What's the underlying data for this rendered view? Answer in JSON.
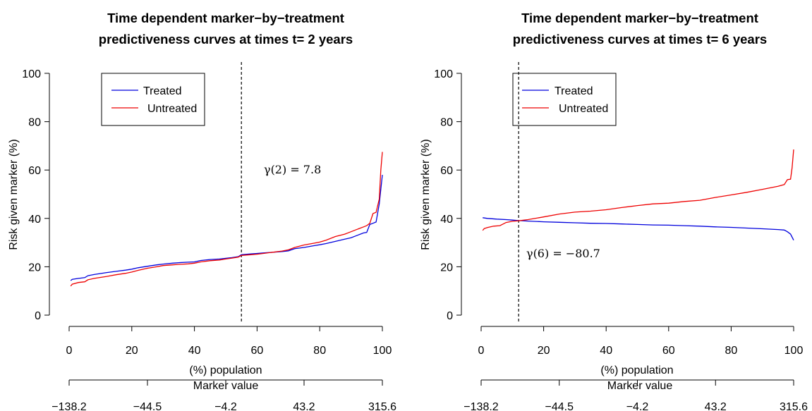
{
  "chart_data": [
    {
      "type": "line",
      "title_line1": "Time dependent marker−by−treatment",
      "title_line2": "predictiveness curves at times t= 2 years",
      "xlabel": "(%) population",
      "ylabel": "Risk given marker (%)",
      "xlim": [
        0,
        100
      ],
      "ylim": [
        0,
        100
      ],
      "x_ticks": [
        "0",
        "20",
        "40",
        "60",
        "80",
        "100"
      ],
      "y_ticks": [
        "0",
        "20",
        "40",
        "60",
        "80",
        "100"
      ],
      "marker_axis_label": "Marker value",
      "marker_ticks": [
        "−138.2",
        "−44.5",
        "−4.2",
        "43.2",
        "315.6"
      ],
      "legend_placement": "top-left",
      "vline_x": 55,
      "annotation": "γ(2) = 7.8",
      "series": [
        {
          "name": "Treated",
          "color": "#0000dd",
          "x": [
            0.5,
            1,
            3,
            5,
            6,
            8,
            10,
            12,
            15,
            18,
            20,
            22,
            25,
            28,
            30,
            33,
            35,
            38,
            40,
            42,
            45,
            48,
            50,
            52,
            54,
            55,
            58,
            60,
            62,
            65,
            68,
            70,
            72,
            75,
            78,
            80,
            82,
            85,
            88,
            90,
            92,
            94,
            95,
            96,
            97,
            98,
            99,
            99.5,
            100
          ],
          "y": [
            14.3,
            14.8,
            15.2,
            15.5,
            16.3,
            16.8,
            17.2,
            17.6,
            18.1,
            18.6,
            19.0,
            19.6,
            20.2,
            20.8,
            21.1,
            21.5,
            21.7,
            21.9,
            22.0,
            22.6,
            23.0,
            23.2,
            23.5,
            23.8,
            24.2,
            25.0,
            25.3,
            25.5,
            25.7,
            26.0,
            26.3,
            26.6,
            27.5,
            28.0,
            28.7,
            29.1,
            29.6,
            30.5,
            31.4,
            32.0,
            33.0,
            34.0,
            34.2,
            37.5,
            38.0,
            38.5,
            46.0,
            52.0,
            58.0
          ]
        },
        {
          "name": "Untreated",
          "color": "#ee0000",
          "x": [
            0.5,
            1,
            3,
            5,
            6,
            8,
            10,
            12,
            15,
            18,
            20,
            22,
            25,
            28,
            30,
            33,
            35,
            38,
            40,
            42,
            45,
            48,
            50,
            52,
            54,
            55,
            58,
            60,
            62,
            65,
            68,
            70,
            72,
            75,
            78,
            80,
            82,
            85,
            88,
            90,
            92,
            94,
            95,
            96,
            97,
            98,
            99,
            99.5,
            100
          ],
          "y": [
            12.0,
            12.8,
            13.5,
            13.8,
            14.6,
            15.2,
            15.6,
            16.0,
            16.7,
            17.3,
            17.8,
            18.5,
            19.4,
            20.0,
            20.5,
            20.8,
            21.0,
            21.2,
            21.5,
            22.0,
            22.5,
            22.8,
            23.2,
            23.6,
            24.0,
            24.7,
            25.0,
            25.2,
            25.5,
            26.0,
            26.5,
            27.0,
            28.0,
            29.0,
            29.7,
            30.2,
            31.0,
            32.5,
            33.5,
            34.5,
            35.5,
            36.5,
            37.0,
            38.0,
            42.0,
            42.5,
            48.0,
            60.0,
            67.5
          ]
        }
      ]
    },
    {
      "type": "line",
      "title_line1": "Time dependent marker−by−treatment",
      "title_line2": "predictiveness curves at times t= 6 years",
      "xlabel": "(%) population",
      "ylabel": "Risk given marker (%)",
      "xlim": [
        0,
        100
      ],
      "ylim": [
        0,
        100
      ],
      "x_ticks": [
        "0",
        "20",
        "40",
        "60",
        "80",
        "100"
      ],
      "y_ticks": [
        "0",
        "20",
        "40",
        "60",
        "80",
        "100"
      ],
      "marker_axis_label": "Marker value",
      "marker_ticks": [
        "−138.2",
        "−44.5",
        "−4.2",
        "43.2",
        "315.6"
      ],
      "legend_placement": "top-left",
      "vline_x": 12,
      "annotation": "γ(6) = −80.7",
      "series": [
        {
          "name": "Treated",
          "color": "#0000dd",
          "x": [
            0.5,
            2,
            5,
            8,
            10,
            12,
            15,
            20,
            25,
            30,
            35,
            40,
            45,
            50,
            55,
            60,
            65,
            70,
            75,
            80,
            85,
            90,
            95,
            97,
            98,
            99,
            100
          ],
          "y": [
            40.3,
            40.0,
            39.7,
            39.5,
            39.3,
            39.1,
            38.9,
            38.6,
            38.4,
            38.2,
            38.0,
            37.9,
            37.7,
            37.5,
            37.3,
            37.2,
            37.0,
            36.8,
            36.5,
            36.3,
            36.0,
            35.7,
            35.4,
            35.2,
            34.5,
            33.5,
            31.0
          ]
        },
        {
          "name": "Untreated",
          "color": "#ee0000",
          "x": [
            0.5,
            1,
            2,
            4,
            6,
            8,
            10,
            12,
            15,
            20,
            25,
            30,
            35,
            40,
            45,
            50,
            55,
            60,
            65,
            70,
            75,
            80,
            85,
            90,
            95,
            97,
            98,
            99,
            99.5,
            100
          ],
          "y": [
            35.0,
            35.8,
            36.2,
            36.8,
            37.0,
            38.3,
            38.8,
            39.0,
            39.5,
            40.6,
            41.8,
            42.6,
            43.0,
            43.6,
            44.5,
            45.3,
            46.0,
            46.3,
            47.0,
            47.5,
            48.7,
            49.7,
            50.8,
            52.0,
            53.3,
            54.0,
            56.0,
            56.2,
            61.0,
            68.5
          ]
        }
      ]
    }
  ]
}
